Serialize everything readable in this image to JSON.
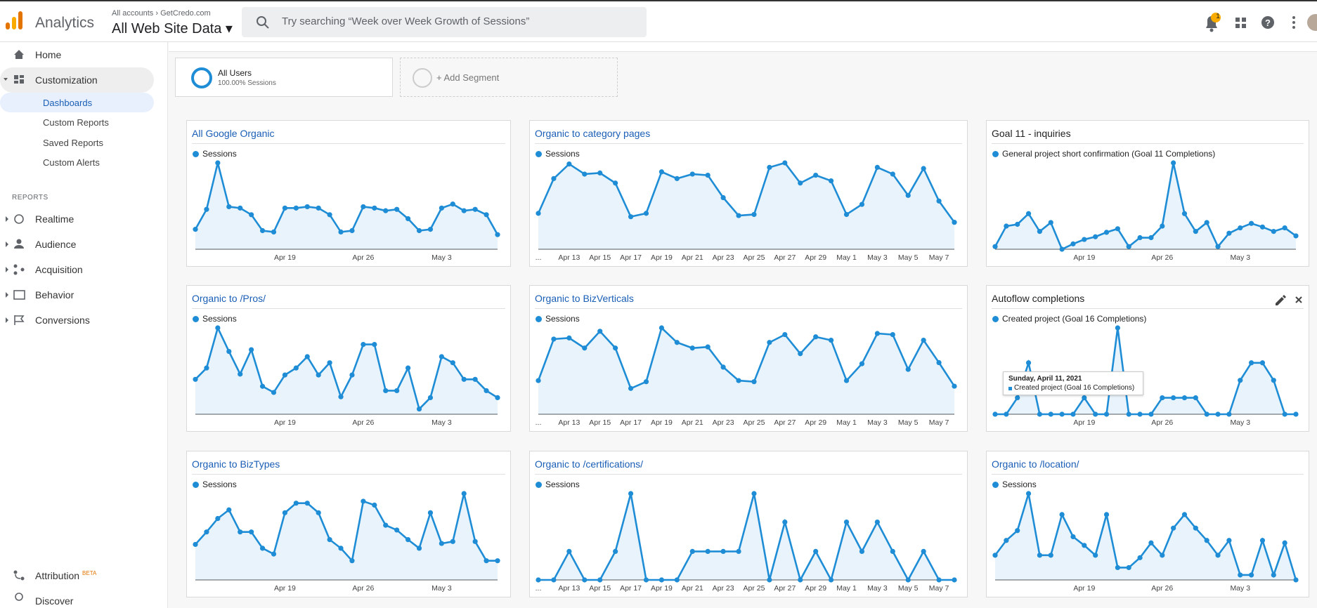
{
  "header": {
    "product": "Analytics",
    "breadcrumb_account": "All accounts",
    "breadcrumb_property": "GetCredo.com",
    "view": "All Web Site Data",
    "search_placeholder": "Try searching “Week over Week Growth of Sessions”",
    "notification_count": 1
  },
  "nav": [
    "Home",
    "Customization"
  ],
  "customization_items": [
    "Dashboards",
    "Custom Reports",
    "Saved Reports",
    "Custom Alerts"
  ],
  "reports_heading": "REPORTS",
  "reports": [
    "Realtime",
    "Audience",
    "Acquisition",
    "Behavior",
    "Conversions"
  ],
  "bottom_nav": [
    {
      "label": "Attribution",
      "badge": "BETA"
    },
    {
      "label": "Discover"
    }
  ],
  "segments": [
    {
      "name": "All Users",
      "detail": "100.00% Sessions"
    },
    {
      "name": "+ Add Segment"
    }
  ],
  "chart_data": [
    {
      "type": "line",
      "title": "All Google Organic",
      "categories": [
        null,
        null,
        null,
        null,
        null,
        null,
        null,
        null,
        "Apr 19",
        null,
        null,
        null,
        null,
        null,
        null,
        "Apr 26",
        null,
        null,
        null,
        null,
        null,
        null,
        "May 3",
        null,
        null,
        null,
        null,
        null
      ],
      "series": [
        {
          "name": "Sessions",
          "color": "#1f8dd6",
          "values": [
            15,
            30,
            65,
            32,
            31,
            26,
            14,
            13,
            31,
            31,
            32,
            31,
            26,
            13,
            14,
            32,
            31,
            29,
            30,
            23,
            14,
            15,
            31,
            34,
            29,
            30,
            26,
            11
          ]
        }
      ]
    },
    {
      "type": "line",
      "title": "Organic to category pages",
      "categories": [
        "...",
        null,
        "Apr 13",
        null,
        "Apr 15",
        null,
        "Apr 17",
        null,
        "Apr 19",
        null,
        "Apr 21",
        null,
        "Apr 23",
        null,
        "Apr 25",
        null,
        "Apr 27",
        null,
        "Apr 29",
        null,
        "May 1",
        null,
        "May 3",
        null,
        "May 5",
        null,
        "May 7",
        null
      ],
      "series": [
        {
          "name": "Sessions",
          "color": "#1f8dd6",
          "values": [
            32,
            63,
            76,
            67,
            68,
            59,
            29,
            32,
            69,
            63,
            67,
            66,
            46,
            30,
            31,
            73,
            77,
            59,
            66,
            61,
            31,
            40,
            73,
            67,
            48,
            72,
            43,
            24
          ]
        }
      ]
    },
    {
      "type": "line",
      "title": "Goal 11 - inquiries",
      "categories": [
        null,
        null,
        null,
        null,
        null,
        null,
        null,
        null,
        "Apr 19",
        null,
        null,
        null,
        null,
        null,
        null,
        "Apr 26",
        null,
        null,
        null,
        null,
        null,
        null,
        "May 3",
        null,
        null,
        null,
        null,
        null
      ],
      "series": [
        {
          "name": "General project short confirmation (Goal 11 Completions)",
          "color": "#1f8dd6",
          "values": [
            3,
            26,
            28,
            40,
            20,
            30,
            0,
            6,
            11,
            14,
            19,
            23,
            3,
            13,
            13,
            26,
            97,
            40,
            20,
            30,
            3,
            18,
            24,
            29,
            25,
            20,
            24,
            15
          ]
        }
      ]
    },
    {
      "type": "line",
      "title": "Organic to /Pros/",
      "categories": [
        null,
        null,
        null,
        null,
        null,
        null,
        null,
        null,
        "Apr 19",
        null,
        null,
        null,
        null,
        null,
        null,
        "Apr 26",
        null,
        null,
        null,
        null,
        null,
        null,
        "May 3",
        null,
        null,
        null,
        null,
        null
      ],
      "series": [
        {
          "name": "Sessions",
          "color": "#1f8dd6",
          "values": [
            40,
            53,
            99,
            72,
            46,
            74,
            32,
            25,
            45,
            53,
            66,
            45,
            59,
            20,
            45,
            80,
            80,
            27,
            27,
            53,
            6,
            19,
            66,
            59,
            40,
            40,
            27,
            19
          ]
        }
      ]
    },
    {
      "type": "line",
      "title": "Organic to BizVerticals",
      "categories": [
        "...",
        null,
        "Apr 13",
        null,
        "Apr 15",
        null,
        "Apr 17",
        null,
        "Apr 19",
        null,
        "Apr 21",
        null,
        "Apr 23",
        null,
        "Apr 25",
        null,
        "Apr 27",
        null,
        "Apr 29",
        null,
        "May 1",
        null,
        "May 3",
        null,
        "May 5",
        null,
        "May 7",
        null
      ],
      "series": [
        {
          "name": "Sessions",
          "color": "#1f8dd6",
          "values": [
            30,
            67,
            68,
            59,
            74,
            59,
            23,
            29,
            77,
            64,
            59,
            60,
            42,
            30,
            29,
            64,
            71,
            54,
            69,
            66,
            30,
            45,
            72,
            71,
            40,
            66,
            46,
            25
          ]
        }
      ]
    },
    {
      "type": "line",
      "title": "Autoflow completions",
      "categories": [
        null,
        null,
        null,
        null,
        null,
        null,
        null,
        null,
        "Apr 19",
        null,
        null,
        null,
        null,
        null,
        null,
        "Apr 26",
        null,
        null,
        null,
        null,
        null,
        null,
        "May 3",
        null,
        null,
        null,
        null,
        null
      ],
      "series": [
        {
          "name": "Created project (Goal 16 Completions)",
          "color": "#1f8dd6",
          "values": [
            0,
            0,
            16,
            50,
            0,
            0,
            0,
            0,
            16,
            0,
            0,
            84,
            0,
            0,
            0,
            16,
            16,
            16,
            16,
            0,
            0,
            0,
            33,
            50,
            50,
            33,
            0,
            0
          ]
        }
      ],
      "tooltip": {
        "date": "Sunday, April 11, 2021",
        "series": "Created project (Goal 16 Completions)"
      }
    },
    {
      "type": "line",
      "title": "Organic to BizTypes",
      "categories": [
        null,
        null,
        null,
        null,
        null,
        null,
        null,
        null,
        "Apr 19",
        null,
        null,
        null,
        null,
        null,
        null,
        "Apr 26",
        null,
        null,
        null,
        null,
        null,
        null,
        "May 3",
        null,
        null,
        null,
        null,
        null
      ],
      "series": [
        {
          "name": "Sessions",
          "color": "#1f8dd6",
          "values": [
            37,
            50,
            64,
            73,
            50,
            50,
            33,
            27,
            70,
            80,
            80,
            70,
            42,
            33,
            20,
            82,
            78,
            57,
            52,
            42,
            33,
            70,
            38,
            40,
            90,
            40,
            20,
            20
          ]
        }
      ]
    },
    {
      "type": "line",
      "title": "Organic to /certifications/",
      "categories": [
        "...",
        null,
        "Apr 13",
        null,
        "Apr 15",
        null,
        "Apr 17",
        null,
        "Apr 19",
        null,
        "Apr 21",
        null,
        "Apr 23",
        null,
        "Apr 25",
        null,
        "Apr 27",
        null,
        "Apr 29",
        null,
        "May 1",
        null,
        "May 3",
        null,
        "May 5",
        null,
        "May 7",
        null
      ],
      "series": [
        {
          "name": "Sessions",
          "color": "#1f8dd6",
          "values": [
            0,
            0,
            33,
            0,
            0,
            33,
            100,
            0,
            0,
            0,
            33,
            33,
            33,
            33,
            100,
            0,
            67,
            0,
            33,
            0,
            67,
            33,
            67,
            33,
            0,
            33,
            0,
            0
          ]
        }
      ]
    },
    {
      "type": "line",
      "title": "Organic to /location/",
      "categories": [
        null,
        null,
        null,
        null,
        null,
        null,
        null,
        null,
        "Apr 19",
        null,
        null,
        null,
        null,
        null,
        null,
        "Apr 26",
        null,
        null,
        null,
        null,
        null,
        null,
        "May 3",
        null,
        null,
        null,
        null,
        null
      ],
      "series": [
        {
          "name": "Sessions",
          "color": "#1f8dd6",
          "values": [
            20,
            32,
            40,
            70,
            20,
            20,
            53,
            35,
            28,
            20,
            53,
            10,
            10,
            18,
            30,
            20,
            42,
            53,
            42,
            32,
            20,
            32,
            4,
            4,
            32,
            4,
            30,
            0
          ]
        }
      ]
    }
  ]
}
